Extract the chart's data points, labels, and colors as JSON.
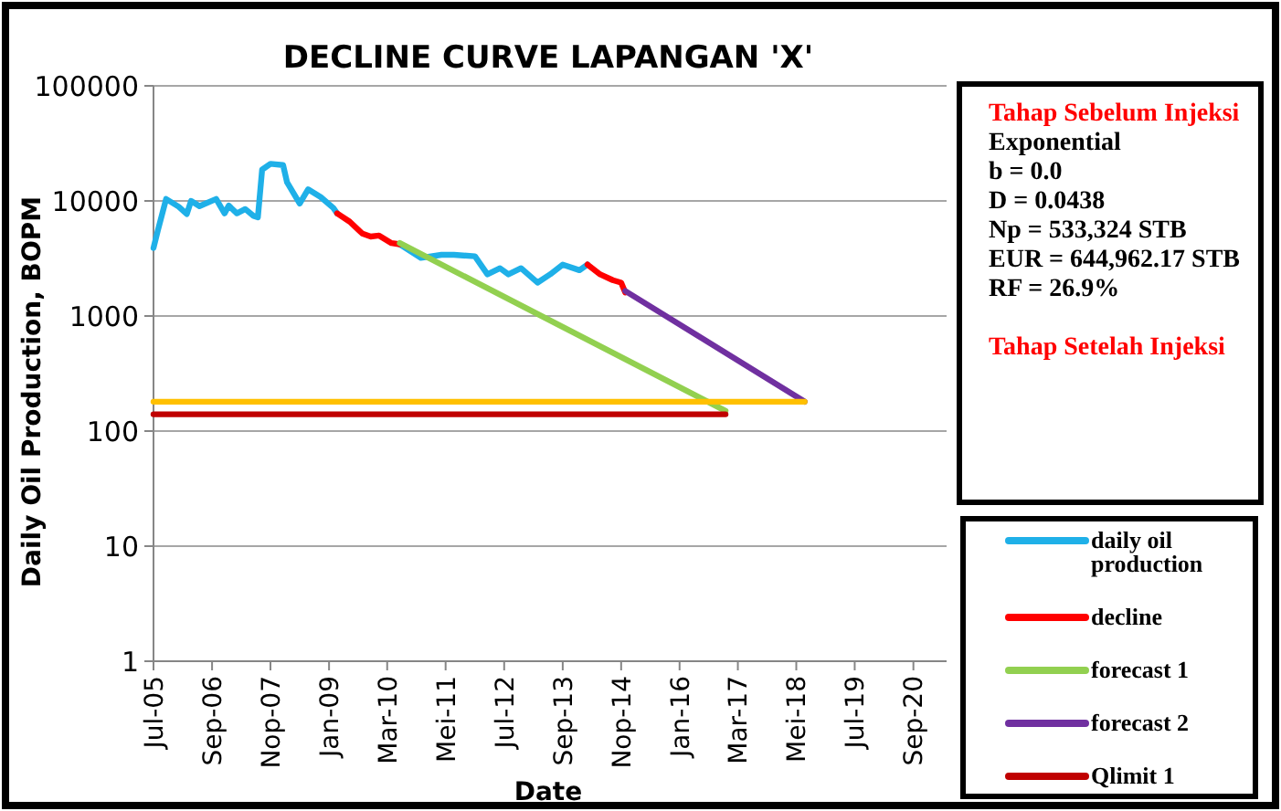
{
  "chart_data": {
    "type": "line",
    "title": "DECLINE CURVE LAPANGAN 'X'",
    "xlabel": "Date",
    "ylabel": "Daily Oil Production, BOPM",
    "log": true,
    "grid": "y",
    "legend": "right",
    "line_style": "solid",
    "marker": "none",
    "xlim": [
      "2005-07",
      "2021-05"
    ],
    "xticks": [
      {
        "value": "2005-07",
        "label": "Jul-05"
      },
      {
        "value": "2006-09",
        "label": "Sep-06"
      },
      {
        "value": "2007-11",
        "label": "Nop-07"
      },
      {
        "value": "2009-01",
        "label": "Jan-09"
      },
      {
        "value": "2010-03",
        "label": "Mar-10"
      },
      {
        "value": "2011-05",
        "label": "Mei-11"
      },
      {
        "value": "2012-07",
        "label": "Jul-12"
      },
      {
        "value": "2013-09",
        "label": "Sep-13"
      },
      {
        "value": "2014-11",
        "label": "Nop-14"
      },
      {
        "value": "2016-01",
        "label": "Jan-16"
      },
      {
        "value": "2017-03",
        "label": "Mar-17"
      },
      {
        "value": "2018-05",
        "label": "Mei-18"
      },
      {
        "value": "2019-07",
        "label": "Jul-19"
      },
      {
        "value": "2020-09",
        "label": "Sep-20"
      }
    ],
    "ylim": [
      1,
      100000
    ],
    "yticks": [
      1,
      10,
      100,
      1000,
      10000,
      100000
    ],
    "series": [
      {
        "name": "daily oil production",
        "color": "#1fb0e8",
        "x": [
          "2005-07",
          "2005-08",
          "2005-10",
          "2006-01",
          "2006-03",
          "2006-04",
          "2006-06",
          "2006-10",
          "2006-12",
          "2007-01",
          "2007-03",
          "2007-05",
          "2007-07",
          "2007-08",
          "2007-09",
          "2007-11",
          "2008-02",
          "2008-03",
          "2008-06",
          "2008-08",
          "2008-11",
          "2009-02",
          "2009-03",
          "2009-10",
          "2010-06",
          "2010-11",
          "2011-04",
          "2011-07",
          "2011-12",
          "2012-03",
          "2012-06",
          "2012-08",
          "2012-11",
          "2013-03",
          "2013-06",
          "2013-09",
          "2014-01",
          "2014-03"
        ],
        "values": [
          3900,
          5500,
          10400,
          8900,
          7700,
          10000,
          9000,
          10400,
          7800,
          9100,
          7800,
          8500,
          7400,
          7200,
          18700,
          21000,
          20500,
          14500,
          9500,
          12600,
          10800,
          8700,
          7800,
          null,
          4200,
          3200,
          3400,
          3400,
          3300,
          2300,
          2600,
          2300,
          2600,
          1950,
          2300,
          2800,
          2500,
          2800
        ]
      },
      {
        "name": "decline",
        "color": "#ff0000",
        "x": [
          "2009-03",
          "2009-06",
          "2009-09",
          "2009-11",
          "2010-01",
          "2010-04",
          "2010-06",
          "2012-01",
          "2014-03",
          "2014-06",
          "2014-09",
          "2014-11",
          "2014-12"
        ],
        "values": [
          7800,
          6600,
          5200,
          4900,
          5000,
          4300,
          4200,
          null,
          2800,
          2300,
          2050,
          1950,
          1600
        ]
      },
      {
        "name": "forecast 1",
        "color": "#92d050",
        "x": [
          "2010-06",
          "2016-12"
        ],
        "values": [
          4300,
          150
        ]
      },
      {
        "name": "forecast 2",
        "color": "#7030a0",
        "x": [
          "2014-12",
          "2018-07"
        ],
        "values": [
          1650,
          180
        ]
      },
      {
        "color": "#ffc000",
        "x": [
          "2005-07",
          "2018-07"
        ],
        "values": [
          180,
          180
        ]
      },
      {
        "name": "Qlimit 1",
        "color": "#c00000",
        "x": [
          "2005-07",
          "2016-12"
        ],
        "values": [
          140,
          140
        ]
      }
    ],
    "annotations": [
      "Tahap Sebelum Injeksi",
      "Exponential",
      "b = 0.0",
      "D = 0.0438",
      "Np = 533,324 STB",
      "EUR = 644,962.17 STB",
      "RF = 26.9%",
      "Tahap Setelah Injeksi"
    ]
  }
}
